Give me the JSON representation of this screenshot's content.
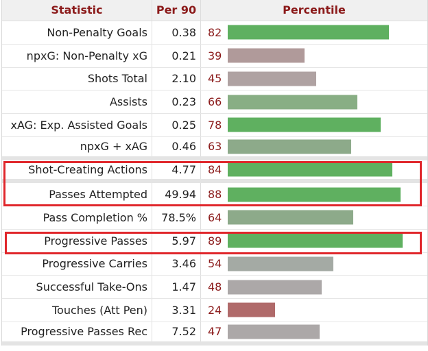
{
  "header": {
    "statistic": "Statistic",
    "per90": "Per 90",
    "percentile": "Percentile"
  },
  "colors": {
    "high": "#5fb060",
    "mid": "#8aae88",
    "low": "#aaa8a8",
    "neutral": "#b0a0a0",
    "poor": "#b06a6a"
  },
  "rows": [
    {
      "stat": "Non-Penalty Goals",
      "per90": "0.38",
      "pct": "82",
      "color": "#5fb060",
      "value": 82
    },
    {
      "stat": "npxG: Non-Penalty xG",
      "per90": "0.21",
      "pct": "39",
      "color": "#b09a9a",
      "value": 39
    },
    {
      "stat": "Shots Total",
      "per90": "2.10",
      "pct": "45",
      "color": "#afa2a2",
      "value": 45
    },
    {
      "stat": "Assists",
      "per90": "0.23",
      "pct": "66",
      "color": "#88ae84",
      "value": 66
    },
    {
      "stat": "xAG: Exp. Assisted Goals",
      "per90": "0.25",
      "pct": "78",
      "color": "#5fb060",
      "value": 78
    },
    {
      "stat": "npxG + xAG",
      "per90": "0.46",
      "pct": "63",
      "color": "#8daa8a",
      "value": 63
    },
    {
      "stat": "Shot-Creating Actions",
      "per90": "4.77",
      "pct": "84",
      "color": "#5fb060",
      "value": 84
    },
    {
      "stat": "Passes Attempted",
      "per90": "49.94",
      "pct": "88",
      "color": "#5fb060",
      "value": 88
    },
    {
      "stat": "Pass Completion %",
      "per90": "78.5%",
      "pct": "64",
      "color": "#8daa8a",
      "value": 64
    },
    {
      "stat": "Progressive Passes",
      "per90": "5.97",
      "pct": "89",
      "color": "#5fb060",
      "value": 89
    },
    {
      "stat": "Progressive Carries",
      "per90": "3.46",
      "pct": "54",
      "color": "#a4aaa4",
      "value": 54
    },
    {
      "stat": "Successful Take-Ons",
      "per90": "1.47",
      "pct": "48",
      "color": "#aca8a8",
      "value": 48
    },
    {
      "stat": "Touches (Att Pen)",
      "per90": "3.31",
      "pct": "24",
      "color": "#b06a6a",
      "value": 24
    },
    {
      "stat": "Progressive Passes Rec",
      "per90": "7.52",
      "pct": "47",
      "color": "#aca8a8",
      "value": 47
    }
  ]
}
